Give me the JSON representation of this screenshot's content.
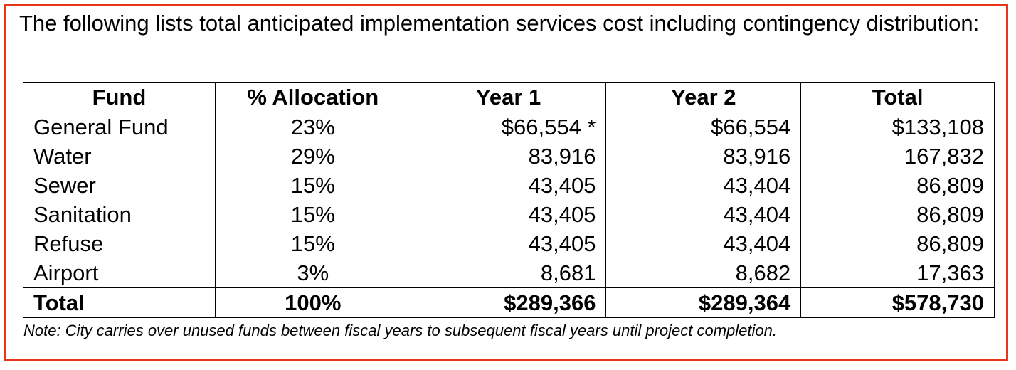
{
  "intro_text": "The following lists total anticipated implementation services cost including contingency distribution:",
  "table": {
    "headers": [
      "Fund",
      "% Allocation",
      "Year 1",
      "Year 2",
      "Total"
    ],
    "rows": [
      {
        "fund": "General Fund",
        "allocation": "23%",
        "year1": "$66,554 *",
        "year2": "$66,554",
        "total": "$133,108"
      },
      {
        "fund": "Water",
        "allocation": "29%",
        "year1": "83,916",
        "year2": "83,916",
        "total": "167,832"
      },
      {
        "fund": "Sewer",
        "allocation": "15%",
        "year1": "43,405",
        "year2": "43,404",
        "total": "86,809"
      },
      {
        "fund": "Sanitation",
        "allocation": "15%",
        "year1": "43,405",
        "year2": "43,404",
        "total": "86,809"
      },
      {
        "fund": "Refuse",
        "allocation": "15%",
        "year1": "43,405",
        "year2": "43,404",
        "total": "86,809"
      },
      {
        "fund": "Airport",
        "allocation": "3%",
        "year1": "8,681",
        "year2": "8,682",
        "total": "17,363"
      }
    ],
    "total_row": {
      "fund": "Total",
      "allocation": "100%",
      "year1": "$289,366",
      "year2": "$289,364",
      "total": "$578,730"
    }
  },
  "note": "Note: City carries over unused funds between fiscal years to subsequent fiscal years until project completion.",
  "colors": {
    "frame_border": "#e8351c",
    "text": "#000000"
  }
}
